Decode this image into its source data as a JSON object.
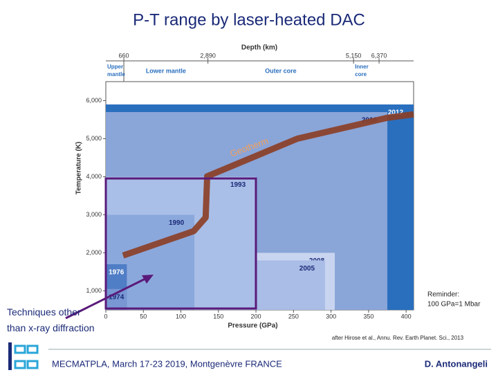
{
  "slide": {
    "title": "P-T range by laser-heated DAC",
    "note": "Techniques  other than x-ray diffraction",
    "reminder": [
      "Reminder:",
      "100 GPa=1 Mbar"
    ],
    "citation": "after Hirose et al., Annu. Rev. Earth Planet. Sci., 2013",
    "footer": "MECMATPLA, March 17-23 2019, Montgenèvre FRANCE",
    "author": "D. Antonangeli"
  },
  "chart_data": {
    "type": "area",
    "xlabel": "Pressure (GPa)",
    "ylabel": "Temperature (K)",
    "top_label": "Depth (km)",
    "xlim": [
      0,
      410
    ],
    "ylim": [
      500,
      6500
    ],
    "xticks": [
      0,
      50,
      100,
      150,
      200,
      250,
      300,
      350,
      400
    ],
    "yticks": [
      {
        "value": 1000,
        "label": "1,000"
      },
      {
        "value": 2000,
        "label": "2,000"
      },
      {
        "value": 3000,
        "label": "3,000"
      },
      {
        "value": 4000,
        "label": "4,000"
      },
      {
        "value": 5000,
        "label": "5,000"
      },
      {
        "value": 6000,
        "label": "6,000"
      }
    ],
    "layers": [
      {
        "name": "Upper mantle",
        "x": [
          0,
          24
        ]
      },
      {
        "name": "Lower mantle",
        "x": [
          24,
          136
        ]
      },
      {
        "name": "Outer core",
        "x": [
          136,
          330
        ]
      },
      {
        "name": "Inner core",
        "x": [
          330,
          364
        ]
      }
    ],
    "depth_labels": [
      "660",
      "2,890",
      "5,150",
      "6,370"
    ],
    "regions": [
      {
        "name": "2012",
        "x": [
          0,
          410
        ],
        "y": [
          500,
          5900
        ],
        "color": "#2a6fbe"
      },
      {
        "name": "2010",
        "x": [
          0,
          375
        ],
        "y": [
          500,
          5700
        ],
        "color": "#8aa5d8"
      },
      {
        "name": "1993",
        "x": [
          0,
          200
        ],
        "y": [
          500,
          4000
        ],
        "color": "#a9bfe7"
      },
      {
        "name": "1990",
        "x": [
          0,
          118
        ],
        "y": [
          500,
          3000
        ],
        "color": "#8ba8dc"
      },
      {
        "name": "2008",
        "x": [
          200,
          305
        ],
        "y": [
          500,
          2000
        ],
        "color": "#c9d5f0"
      },
      {
        "name": "2005",
        "x": [
          200,
          292
        ],
        "y": [
          500,
          1800
        ],
        "color": "#a9bde6"
      },
      {
        "name": "1976",
        "x": [
          0,
          28
        ],
        "y": [
          500,
          1700
        ],
        "color": "#4f7dc6"
      },
      {
        "name": "1974",
        "x": [
          0,
          28
        ],
        "y": [
          500,
          1050
        ],
        "color": "#7897d3"
      }
    ],
    "series": [
      {
        "name": "Geotherm",
        "color": "#8b3d24",
        "x": [
          23,
          117,
          133,
          135,
          255,
          375,
          410
        ],
        "y": [
          1930,
          2570,
          2930,
          4010,
          5000,
          5550,
          5640
        ]
      }
    ]
  }
}
